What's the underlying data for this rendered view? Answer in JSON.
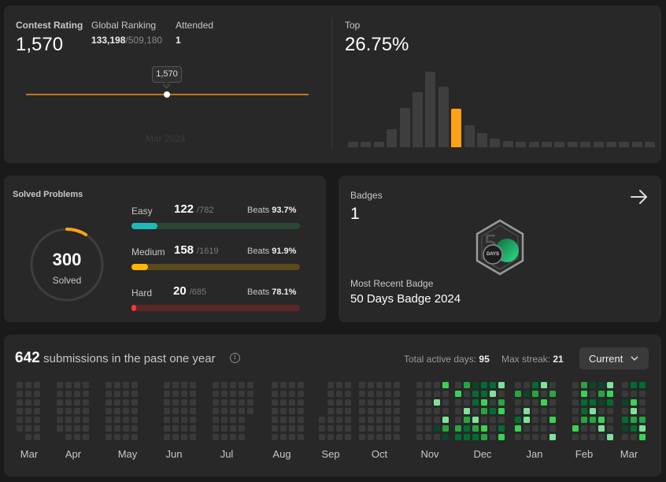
{
  "contest": {
    "rating_label": "Contest Rating",
    "rating_value": "1,570",
    "ranking_label": "Global Ranking",
    "ranking_value": "133,198",
    "ranking_total": "/509,180",
    "attended_label": "Attended",
    "attended_value": "1",
    "tooltip_value": "1,570",
    "x_label": "Mar 2024",
    "top_label": "Top",
    "top_value": "26.75%",
    "histogram": [
      0.06,
      0.06,
      0.06,
      0.2,
      0.43,
      0.6,
      0.82,
      0.66,
      0.42,
      0.24,
      0.15,
      0.09,
      0.07,
      0.06,
      0.06,
      0.06,
      0.06,
      0.06,
      0.06,
      0.06,
      0.06,
      0.06,
      0.06,
      0.06
    ],
    "histogram_highlight_index": 8,
    "colors": {
      "accent": "#ffa116",
      "bar": "#3e3e3e",
      "line": "#b8781f"
    }
  },
  "solved": {
    "title": "Solved Problems",
    "total": "300",
    "total_label": "Solved",
    "progress_fraction": 0.09,
    "rows": [
      {
        "name": "Easy",
        "solved": "122",
        "total": "/782",
        "beats_label": "Beats",
        "beats": "93.7%",
        "fraction": 0.156,
        "color": "#1cbaba",
        "track": "#2a4733"
      },
      {
        "name": "Medium",
        "solved": "158",
        "total": "/1619",
        "beats_label": "Beats",
        "beats": "91.9%",
        "fraction": 0.098,
        "color": "#ffb700",
        "track": "#5c4a1e"
      },
      {
        "name": "Hard",
        "solved": "20",
        "total": "/685",
        "beats_label": "Beats",
        "beats": "78.1%",
        "fraction": 0.029,
        "color": "#f63737",
        "track": "#5a2626"
      }
    ]
  },
  "badges": {
    "label": "Badges",
    "count": "1",
    "badge_icon_text": "DAYS",
    "recent_label": "Most Recent Badge",
    "recent_name": "50 Days Badge 2024"
  },
  "submissions": {
    "count": "642",
    "text": "submissions in the past one year",
    "active_label": "Total active days:",
    "active_value": "95",
    "streak_label": "Max streak:",
    "streak_value": "21",
    "select_value": "Current",
    "months": [
      "Mar",
      "Apr",
      "May",
      "Jun",
      "Jul",
      "Aug",
      "Sep",
      "Oct",
      "Nov",
      "Dec",
      "Jan",
      "Feb",
      "Mar"
    ]
  }
}
